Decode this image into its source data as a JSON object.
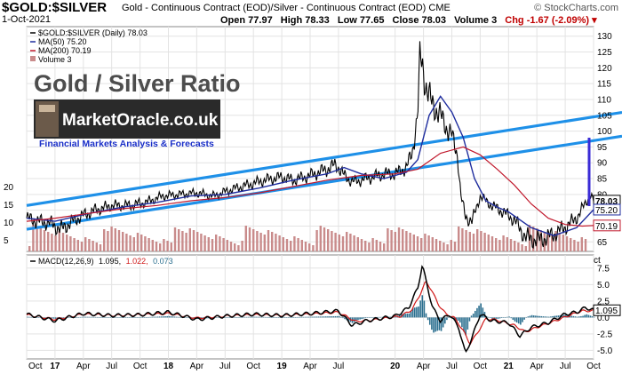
{
  "header": {
    "symbol": "$GOLD:$SILVER",
    "description": "Gold - Continuous Contract (EOD)/Silver - Continuous Contract (EOD)  CME",
    "watermark": "© StockCharts.com",
    "date": "1-Oct-2021",
    "open": "Open 77.97",
    "high": "High 78.33",
    "low": "Low 77.65",
    "close": "Close 78.03",
    "volume": "Volume 3",
    "change": "Chg -1.67 (-2.09%) ▾"
  },
  "overlay": {
    "title": "Gold / Silver Ratio",
    "logo_text": "MarketOracle.co.uk",
    "tagline": "Financial Markets Analysis & Forecasts"
  },
  "legend": {
    "main": "$GOLD:$SILVER (Daily) 78.03",
    "ma50": "MA(50) 75.20",
    "ma200": "MA(200) 70.19",
    "volume": "Volume 3",
    "macd_name": "MACD(12,26,9)",
    "macd_v1": "1.095,",
    "macd_v2": "1.022,",
    "macd_v3": "0.073"
  },
  "colors": {
    "price": "#000000",
    "ma50": "#1f2d9e",
    "ma200": "#c0182c",
    "trendline": "#1e90e8",
    "volume": "#c98b8b",
    "macd": "#000000",
    "signal": "#d01818",
    "histogram": "#2b6f8f",
    "marker": "#3a2bd6"
  },
  "chart_data": [
    {
      "type": "line",
      "title": "$GOLD:$SILVER (Daily) 78.03",
      "x_label": "date (decimal year)",
      "x_ticks": [
        "Oct",
        "17",
        "Apr",
        "Jul",
        "Oct",
        "18",
        "Apr",
        "Jul",
        "Oct",
        "19",
        "Apr",
        "Jul",
        "20",
        "Apr",
        "Jul",
        "Oct",
        "21",
        "Apr",
        "Jul",
        "Oct"
      ],
      "x_tick_values": [
        2016.75,
        2017.0,
        2017.25,
        2017.5,
        2017.75,
        2018.0,
        2018.25,
        2018.5,
        2018.75,
        2019.0,
        2019.25,
        2019.5,
        2020.0,
        2020.25,
        2020.5,
        2020.75,
        2021.0,
        2021.25,
        2021.5,
        2021.75
      ],
      "xlim": [
        2016.75,
        2021.75
      ],
      "ylim": [
        62,
        133
      ],
      "y_ticks_right": [
        65,
        70,
        75,
        80,
        85,
        90,
        95,
        100,
        105,
        110,
        115,
        120,
        125,
        130
      ],
      "price_labels": [
        "78.03",
        "75.20",
        "70.19"
      ],
      "volume_axis_labels": [
        "20",
        "15",
        "10",
        "5"
      ],
      "volume_right_label": "3",
      "series": [
        {
          "name": "$GOLD:$SILVER",
          "x": [
            2016.75,
            2016.85,
            2016.95,
            2017.05,
            2017.2,
            2017.35,
            2017.5,
            2017.65,
            2017.8,
            2017.95,
            2018.1,
            2018.25,
            2018.4,
            2018.55,
            2018.7,
            2018.85,
            2019.0,
            2019.1,
            2019.25,
            2019.4,
            2019.48,
            2019.55,
            2019.62,
            2019.7,
            2019.8,
            2019.9,
            2020.0,
            2020.1,
            2020.15,
            2020.2,
            2020.22,
            2020.25,
            2020.28,
            2020.32,
            2020.38,
            2020.45,
            2020.5,
            2020.55,
            2020.58,
            2020.62,
            2020.68,
            2020.75,
            2020.85,
            2020.95,
            2021.05,
            2021.15,
            2021.25,
            2021.35,
            2021.45,
            2021.55,
            2021.62,
            2021.68,
            2021.72,
            2021.75
          ],
          "y": [
            72.5,
            71.5,
            71.0,
            69.0,
            72.5,
            75.0,
            76.5,
            76.5,
            77.5,
            79.5,
            80.0,
            80.5,
            79.5,
            81.5,
            83.0,
            84.5,
            85.5,
            84.5,
            86.0,
            88.0,
            89.5,
            86.0,
            84.0,
            84.5,
            85.5,
            86.5,
            86.5,
            88.5,
            93.0,
            106.0,
            124.0,
            119.0,
            113.0,
            109.0,
            106.0,
            101.5,
            98.5,
            92.5,
            79.5,
            73.0,
            71.5,
            79.5,
            76.5,
            74.5,
            72.0,
            66.5,
            65.5,
            66.5,
            68.5,
            71.0,
            73.5,
            77.5,
            79.5,
            78.0
          ]
        },
        {
          "name": "MA(50)",
          "x": [
            2016.75,
            2017.0,
            2017.3,
            2017.6,
            2017.9,
            2018.2,
            2018.5,
            2018.8,
            2019.1,
            2019.4,
            2019.55,
            2019.7,
            2019.9,
            2020.1,
            2020.2,
            2020.3,
            2020.4,
            2020.5,
            2020.6,
            2020.7,
            2020.8,
            2020.9,
            2021.0,
            2021.2,
            2021.4,
            2021.6,
            2021.75
          ],
          "y": [
            72.5,
            71.5,
            74.0,
            76.0,
            77.5,
            79.5,
            80.0,
            82.0,
            84.5,
            86.5,
            88.5,
            86.5,
            85.0,
            87.0,
            91.0,
            105.0,
            111.0,
            106.0,
            98.0,
            85.0,
            78.0,
            76.0,
            74.5,
            69.5,
            67.0,
            69.5,
            75.2
          ]
        },
        {
          "name": "MA(200)",
          "x": [
            2016.75,
            2017.0,
            2017.3,
            2017.6,
            2017.9,
            2018.2,
            2018.5,
            2018.8,
            2019.1,
            2019.4,
            2019.7,
            2020.0,
            2020.2,
            2020.4,
            2020.6,
            2020.75,
            2020.9,
            2021.05,
            2021.2,
            2021.35,
            2021.5,
            2021.65,
            2021.75
          ],
          "y": [
            71.5,
            72.5,
            74.0,
            75.5,
            76.5,
            78.0,
            79.0,
            80.5,
            82.5,
            84.5,
            86.0,
            86.5,
            88.0,
            93.0,
            95.0,
            92.5,
            88.0,
            83.0,
            77.0,
            72.5,
            70.5,
            70.0,
            70.19
          ]
        },
        {
          "name": "Trendline upper",
          "x": [
            2016.75,
            2021.75
          ],
          "y": [
            76.5,
            104.5
          ]
        },
        {
          "name": "Trendline lower",
          "x": [
            2016.75,
            2021.75
          ],
          "y": [
            69.0,
            97.0
          ]
        }
      ]
    },
    {
      "type": "line",
      "title": "MACD(12,26,9) 1.095, 1.022, 0.073",
      "xlim": [
        2016.75,
        2021.75
      ],
      "ylim": [
        -6.3,
        9.5
      ],
      "y_ticks": [
        -5.0,
        -2.5,
        0.0,
        2.5,
        5.0,
        7.5
      ],
      "y_tick_labels": [
        "-5.0",
        "-2.5",
        "0.0",
        "2.5",
        "5.0",
        "7.5"
      ],
      "series": [
        {
          "name": "MACD",
          "x": [
            2016.75,
            2017.0,
            2017.25,
            2017.5,
            2017.75,
            2018.0,
            2018.25,
            2018.5,
            2018.75,
            2019.0,
            2019.25,
            2019.5,
            2019.62,
            2019.75,
            2020.0,
            2020.12,
            2020.2,
            2020.24,
            2020.28,
            2020.33,
            2020.4,
            2020.48,
            2020.56,
            2020.62,
            2020.68,
            2020.75,
            2020.85,
            2021.0,
            2021.1,
            2021.2,
            2021.35,
            2021.5,
            2021.6,
            2021.68,
            2021.75
          ],
          "y": [
            0.5,
            -0.5,
            0.6,
            0.3,
            0.4,
            0.8,
            -0.3,
            0.2,
            0.5,
            0.3,
            0.6,
            1.0,
            -1.2,
            -0.5,
            0.2,
            1.5,
            4.5,
            8.0,
            5.0,
            1.5,
            -0.5,
            0.5,
            -1.5,
            -5.5,
            -3.0,
            0.5,
            -0.5,
            -0.8,
            -2.8,
            -1.5,
            -0.8,
            0.5,
            0.8,
            1.5,
            1.095
          ]
        },
        {
          "name": "Signal",
          "x": [
            2016.75,
            2017.0,
            2017.25,
            2017.5,
            2017.75,
            2018.0,
            2018.25,
            2018.5,
            2018.75,
            2019.0,
            2019.25,
            2019.5,
            2019.65,
            2019.8,
            2020.05,
            2020.15,
            2020.22,
            2020.27,
            2020.32,
            2020.38,
            2020.45,
            2020.52,
            2020.6,
            2020.66,
            2020.72,
            2020.8,
            2020.9,
            2021.05,
            2021.15,
            2021.25,
            2021.4,
            2021.55,
            2021.65,
            2021.75
          ],
          "y": [
            0.4,
            -0.3,
            0.5,
            0.3,
            0.4,
            0.6,
            -0.1,
            0.2,
            0.4,
            0.3,
            0.5,
            0.8,
            -0.6,
            -0.4,
            0.2,
            1.2,
            3.5,
            5.5,
            4.2,
            2.0,
            0.5,
            0.0,
            -2.0,
            -4.0,
            -2.5,
            -0.2,
            -0.4,
            -1.2,
            -2.2,
            -1.5,
            -0.6,
            0.4,
            1.0,
            1.022
          ]
        }
      ]
    }
  ]
}
